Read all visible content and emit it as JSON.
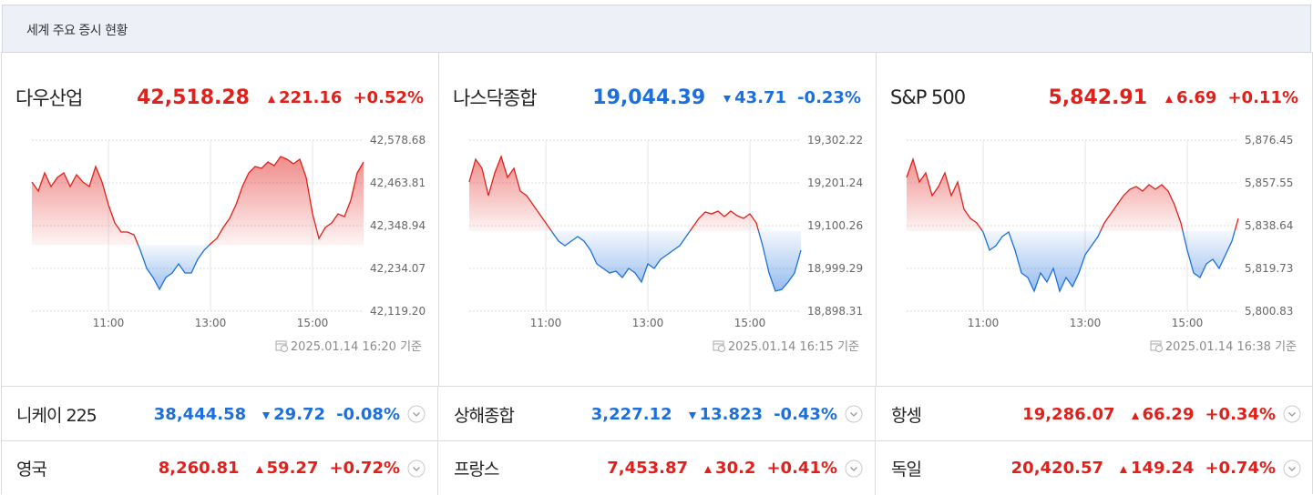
{
  "header": {
    "title": "세계 주요 증시 현황"
  },
  "colors": {
    "up": "#e0201b",
    "down": "#1c6fdc"
  },
  "chart_data": [
    {
      "type": "line",
      "title": "다우산업",
      "price": {
        "value": 42518.28,
        "label": "42,518.28"
      },
      "change": 221.16,
      "change_pct": {
        "value": 0.52,
        "label": "+0.52%"
      },
      "timestamp": "2025.01.14 16:20 기준",
      "x": [
        9.5,
        9.625,
        9.75,
        9.875,
        10,
        10.125,
        10.25,
        10.375,
        10.5,
        10.625,
        10.75,
        10.875,
        11,
        11.125,
        11.25,
        11.375,
        11.5,
        11.625,
        11.75,
        11.875,
        12,
        12.125,
        12.25,
        12.375,
        12.5,
        12.625,
        12.75,
        12.875,
        13,
        13.125,
        13.25,
        13.375,
        13.5,
        13.625,
        13.75,
        13.875,
        14,
        14.125,
        14.25,
        14.375,
        14.5,
        14.625,
        14.75,
        14.875,
        15,
        15.125,
        15.25,
        15.375,
        15.5,
        15.625,
        15.75,
        15.875,
        16
      ],
      "values": [
        42466.3,
        42441.9,
        42490.7,
        42454.0,
        42478.5,
        42490.7,
        42454.0,
        42485.8,
        42466.3,
        42454.0,
        42507.8,
        42466.3,
        42405.2,
        42356.3,
        42331.8,
        42331.8,
        42324.5,
        42283.0,
        42234.1,
        42209.7,
        42177.9,
        42209.7,
        42221.9,
        42246.3,
        42221.9,
        42221.9,
        42258.5,
        42283.0,
        42300.1,
        42314.7,
        42344.1,
        42368.5,
        42405.2,
        42454.0,
        42490.7,
        42507.8,
        42502.9,
        42520.0,
        42510.2,
        42534.7,
        42527.4,
        42515.1,
        42527.4,
        42478.5,
        42380.7,
        42314.7,
        42344.1,
        42356.3,
        42380.7,
        42373.4,
        42417.4,
        42490.7,
        42520.0
      ],
      "xlim": [
        9.5,
        16
      ],
      "xticks": [
        {
          "value": 11,
          "label": "11:00"
        },
        {
          "value": 13,
          "label": "13:00"
        },
        {
          "value": 15,
          "label": "15:00"
        }
      ],
      "ylim": [
        42119.2,
        42578.68
      ],
      "yticks": [
        {
          "value": 42578.68,
          "label": "42,578.68"
        },
        {
          "value": 42463.81,
          "label": "42,463.81"
        },
        {
          "value": 42348.94,
          "label": "42,348.94"
        },
        {
          "value": 42234.07,
          "label": "42,234.07"
        },
        {
          "value": 42119.2,
          "label": "42,119.20"
        }
      ],
      "grid": true
    },
    {
      "type": "line",
      "title": "나스닥종합",
      "price": {
        "value": 19044.39,
        "label": "19,044.39"
      },
      "change": {
        "value": -43.71,
        "label": "43.71"
      },
      "change_pct": {
        "value": -0.23,
        "label": "-0.23%"
      },
      "timestamp": "2025.01.14 16:15 기준",
      "x": [
        9.5,
        9.625,
        9.75,
        9.875,
        10,
        10.125,
        10.25,
        10.375,
        10.5,
        10.625,
        10.75,
        10.875,
        11,
        11.125,
        11.25,
        11.375,
        11.5,
        11.625,
        11.75,
        11.875,
        12,
        12.125,
        12.25,
        12.375,
        12.5,
        12.625,
        12.75,
        12.875,
        13,
        13.125,
        13.25,
        13.375,
        13.5,
        13.625,
        13.75,
        13.875,
        14,
        14.125,
        14.25,
        14.375,
        14.5,
        14.625,
        14.75,
        14.875,
        15,
        15.125,
        15.25,
        15.375,
        15.5,
        15.625,
        15.75,
        15.875,
        16
      ],
      "values": [
        19203.39,
        19257.1,
        19235.62,
        19171.16,
        19224.87,
        19263.55,
        19214.13,
        19235.62,
        19181.9,
        19171.16,
        19149.68,
        19128.19,
        19106.71,
        19085.22,
        19063.74,
        19052.99,
        19063.74,
        19074.48,
        19063.74,
        19042.25,
        19010.02,
        18999.28,
        18988.54,
        18992.84,
        18977.8,
        18999.28,
        18988.54,
        18967.05,
        19010.02,
        18999.28,
        19020.77,
        19031.51,
        19042.25,
        19052.99,
        19074.48,
        19095.96,
        19117.45,
        19132.49,
        19128.19,
        19134.64,
        19121.75,
        19134.64,
        19123.89,
        19117.45,
        19128.19,
        19106.71,
        19052.99,
        18988.54,
        18945.57,
        18949.87,
        18967.05,
        18988.54,
        19042.25
      ],
      "xlim": [
        9.5,
        16
      ],
      "xticks": [
        {
          "value": 11,
          "label": "11:00"
        },
        {
          "value": 13,
          "label": "13:00"
        },
        {
          "value": 15,
          "label": "15:00"
        }
      ],
      "ylim": [
        18898.31,
        19302.22
      ],
      "yticks": [
        {
          "value": 19302.22,
          "label": "19,302.22"
        },
        {
          "value": 19201.24,
          "label": "19,201.24"
        },
        {
          "value": 19100.26,
          "label": "19,100.26"
        },
        {
          "value": 18999.29,
          "label": "18,999.29"
        },
        {
          "value": 18898.31,
          "label": "18,898.31"
        }
      ],
      "grid": true
    },
    {
      "type": "line",
      "title": "S&P 500",
      "price": {
        "value": 5842.91,
        "label": "5,842.91"
      },
      "change": 6.69,
      "change_pct": {
        "value": 0.11,
        "label": "+0.11%"
      },
      "timestamp": "2025.01.14 16:38 기준",
      "x": [
        9.5,
        9.625,
        9.75,
        9.875,
        10,
        10.125,
        10.25,
        10.375,
        10.5,
        10.625,
        10.75,
        10.875,
        11,
        11.125,
        11.25,
        11.375,
        11.5,
        11.625,
        11.75,
        11.875,
        12,
        12.125,
        12.25,
        12.375,
        12.5,
        12.625,
        12.75,
        12.875,
        13,
        13.125,
        13.25,
        13.375,
        13.5,
        13.625,
        13.75,
        13.875,
        14,
        14.125,
        14.25,
        14.375,
        14.5,
        14.625,
        14.75,
        14.875,
        15,
        15.125,
        15.25,
        15.375,
        15.5,
        15.625,
        15.75,
        15.875,
        16
      ],
      "values": [
        5859.96,
        5868.0,
        5857.95,
        5861.97,
        5851.91,
        5855.94,
        5861.97,
        5851.91,
        5857.95,
        5845.88,
        5841.86,
        5839.85,
        5835.82,
        5827.78,
        5829.79,
        5833.81,
        5835.82,
        5827.78,
        5817.72,
        5815.71,
        5809.68,
        5817.72,
        5813.7,
        5819.74,
        5809.68,
        5815.71,
        5811.69,
        5817.72,
        5825.77,
        5829.79,
        5833.81,
        5839.85,
        5843.87,
        5847.89,
        5851.91,
        5854.73,
        5855.94,
        5853.93,
        5856.74,
        5854.73,
        5856.74,
        5853.93,
        5847.89,
        5839.85,
        5827.78,
        5817.72,
        5815.71,
        5821.75,
        5823.76,
        5819.74,
        5825.77,
        5831.8,
        5841.86
      ],
      "xlim": [
        9.5,
        16
      ],
      "xticks": [
        {
          "value": 11,
          "label": "11:00"
        },
        {
          "value": 13,
          "label": "13:00"
        },
        {
          "value": 15,
          "label": "15:00"
        }
      ],
      "ylim": [
        5800.83,
        5876.45
      ],
      "yticks": [
        {
          "value": 5876.45,
          "label": "5,876.45"
        },
        {
          "value": 5857.55,
          "label": "5,857.55"
        },
        {
          "value": 5838.64,
          "label": "5,838.64"
        },
        {
          "value": 5819.73,
          "label": "5,819.73"
        },
        {
          "value": 5800.83,
          "label": "5,800.83"
        }
      ],
      "grid": true
    }
  ],
  "quotes": {
    "rows": [
      [
        {
          "name": "니케이 225",
          "price": {
            "value": 38444.58,
            "label": "38,444.58"
          },
          "change": {
            "value": -29.72,
            "label": "29.72"
          },
          "change_pct": {
            "value": -0.08,
            "label": "-0.08%"
          }
        },
        {
          "name": "상해종합",
          "price": {
            "value": 3227.12,
            "label": "3,227.12"
          },
          "change": {
            "value": -13.823,
            "label": "13.823"
          },
          "change_pct": {
            "value": -0.43,
            "label": "-0.43%"
          }
        },
        {
          "name": "항셍",
          "price": {
            "value": 19286.07,
            "label": "19,286.07"
          },
          "change": 66.29,
          "change_pct": {
            "value": 0.34,
            "label": "+0.34%"
          }
        }
      ],
      [
        {
          "name": "영국",
          "price": {
            "value": 8260.81,
            "label": "8,260.81"
          },
          "change": 59.27,
          "change_pct": {
            "value": 0.72,
            "label": "+0.72%"
          }
        },
        {
          "name": "프랑스",
          "price": {
            "value": 7453.87,
            "label": "7,453.87"
          },
          "change": 30.2,
          "change_pct": {
            "value": 0.41,
            "label": "+0.41%"
          }
        },
        {
          "name": "독일",
          "price": {
            "value": 20420.57,
            "label": "20,420.57"
          },
          "change": 149.24,
          "change_pct": {
            "value": 0.74,
            "label": "+0.74%"
          }
        }
      ]
    ]
  }
}
